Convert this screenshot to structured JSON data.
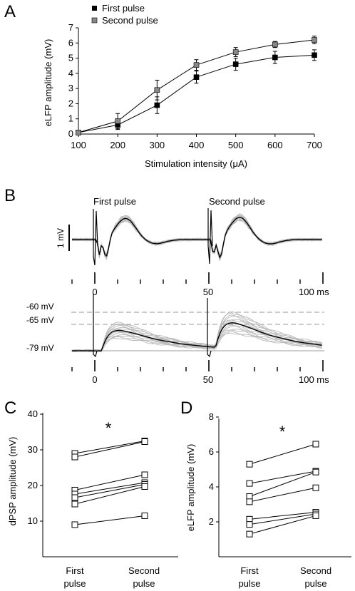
{
  "panels": {
    "a": {
      "letter": "A"
    },
    "b": {
      "letter": "B",
      "first_pulse_label": "First pulse",
      "second_pulse_label": "Second pulse",
      "scale_label": "1 mV",
      "top_time_ticks": [
        "0",
        "50",
        "100 ms"
      ],
      "bottom_time_ticks": [
        "0",
        "50",
        "100 ms"
      ],
      "voltage_levels": [
        "-60 mV",
        "-65 mV",
        "-79 mV"
      ]
    },
    "c": {
      "letter": "C"
    },
    "d": {
      "letter": "D"
    }
  },
  "chart_data": [
    {
      "id": "A",
      "type": "line",
      "xlabel": "Stimulation intensity (μA)",
      "ylabel": "eLFP amplitude (mV)",
      "x": [
        100,
        200,
        300,
        400,
        500,
        600,
        700
      ],
      "xlim": [
        100,
        700
      ],
      "ylim": [
        0,
        7
      ],
      "xticks": [
        "100",
        "200",
        "300",
        "400",
        "500",
        "600",
        "700"
      ],
      "yticks": [
        "0",
        "1",
        "2",
        "3",
        "4",
        "5",
        "6",
        "7"
      ],
      "legend_position": "top-left",
      "series": [
        {
          "name": "First pulse",
          "color": "#000000",
          "values": [
            0.1,
            0.6,
            1.9,
            3.75,
            4.6,
            5.05,
            5.2
          ],
          "errors": [
            0.05,
            0.3,
            0.55,
            0.4,
            0.4,
            0.4,
            0.35
          ]
        },
        {
          "name": "Second pulse",
          "color": "#888888",
          "values": [
            0.1,
            0.85,
            2.9,
            4.55,
            5.4,
            5.9,
            6.2
          ],
          "errors": [
            0.05,
            0.5,
            0.65,
            0.35,
            0.3,
            0.2,
            0.25
          ]
        }
      ]
    },
    {
      "id": "C",
      "type": "line",
      "ylabel": "dPSP amplitude (mV)",
      "categories": [
        "First pulse",
        "Second pulse"
      ],
      "category_labels": [
        [
          "First",
          "pulse"
        ],
        [
          "Second",
          "pulse"
        ]
      ],
      "ylim": [
        0,
        40
      ],
      "yticks": [
        "10",
        "20",
        "30",
        "40"
      ],
      "annotation": "*",
      "pairs": [
        [
          29,
          32.5
        ],
        [
          28,
          32.3
        ],
        [
          18.7,
          23
        ],
        [
          17.6,
          20.8
        ],
        [
          16.6,
          20.3
        ],
        [
          14.8,
          19.7
        ],
        [
          9,
          11.5
        ]
      ]
    },
    {
      "id": "D",
      "type": "line",
      "ylabel": "eLFP amplitude (mV)",
      "categories": [
        "First pulse",
        "Second pulse"
      ],
      "category_labels": [
        [
          "First",
          "pulse"
        ],
        [
          "Second",
          "pulse"
        ]
      ],
      "ylim": [
        0,
        8
      ],
      "yticks": [
        "2",
        "4",
        "6",
        "8"
      ],
      "annotation": "*",
      "pairs": [
        [
          5.3,
          6.45
        ],
        [
          4.2,
          4.9
        ],
        [
          3.45,
          4.85
        ],
        [
          3.15,
          3.95
        ],
        [
          2.15,
          2.55
        ],
        [
          1.85,
          2.45
        ],
        [
          1.3,
          2.35
        ]
      ]
    }
  ]
}
